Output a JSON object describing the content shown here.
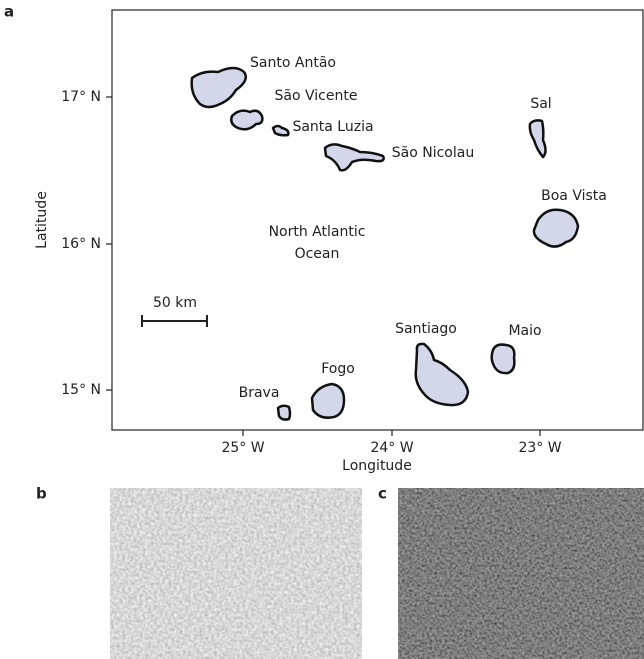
{
  "panels": {
    "a": {
      "label": "a",
      "x_axis": {
        "title": "Longitude",
        "ticks": [
          "25° W",
          "24° W",
          "23° W"
        ]
      },
      "y_axis": {
        "title": "Latitude",
        "ticks": [
          "17° N",
          "16° N",
          "15° N"
        ]
      },
      "islands": [
        "Santo Antão",
        "São Vicente",
        "Santa Luzia",
        "São Nicolau",
        "Sal",
        "Boa Vista",
        "Santiago",
        "Maio",
        "Fogo",
        "Brava"
      ],
      "ocean_label": [
        "North Atlantic",
        "Ocean"
      ],
      "scale_bar": "50 km"
    },
    "b": {
      "label": "b"
    },
    "c": {
      "label": "c"
    }
  }
}
